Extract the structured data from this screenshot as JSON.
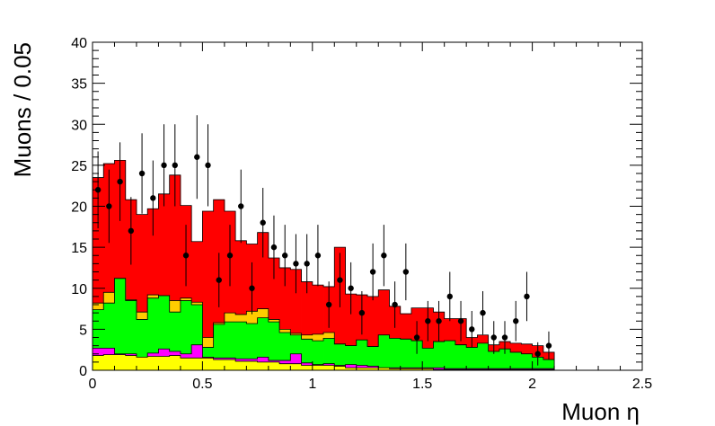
{
  "chart_data": {
    "type": "histogram-stacked",
    "xlabel": "Muon η",
    "ylabel": "Muons / 0.05",
    "xlim": [
      0,
      2.5
    ],
    "ylim": [
      0,
      40
    ],
    "bin_width": 0.05,
    "x_ticks": [
      0,
      0.5,
      1,
      1.5,
      2,
      2.5
    ],
    "x_tick_labels": [
      "0",
      "0.5",
      "1",
      "1.5",
      "2",
      "2.5"
    ],
    "y_ticks": [
      0,
      5,
      10,
      15,
      20,
      25,
      30,
      35,
      40
    ],
    "y_tick_labels": [
      "0",
      "5",
      "10",
      "15",
      "20",
      "25",
      "30",
      "35",
      "40"
    ],
    "grid": false,
    "legend": "none",
    "colors": {
      "yellow": "#ffff00",
      "magenta": "#ff00ff",
      "green": "#00ff00",
      "orange": "#ffcc00",
      "red": "#ff0000",
      "data": "#000000"
    },
    "stack_order": [
      "yellow",
      "magenta",
      "green",
      "orange",
      "red"
    ],
    "stack_cumulative": {
      "yellow": [
        1.8,
        1.9,
        1.9,
        1.8,
        1.6,
        1.7,
        1.7,
        1.8,
        1.5,
        1.5,
        1.5,
        1.3,
        1.3,
        1.1,
        1.1,
        1.0,
        1.0,
        0.8,
        0.8,
        0.6,
        0.6,
        0.6,
        0.5,
        0.3,
        0.3,
        0.3,
        0.3,
        0.2,
        0.2,
        0.2,
        0.2,
        0.1,
        0.1,
        0.1,
        0.1,
        0.1,
        0.1,
        0.1,
        0.1,
        0.1,
        0.1,
        0.1
      ],
      "magenta": [
        2.7,
        2.7,
        2.0,
        2.0,
        1.6,
        2.1,
        2.6,
        2.3,
        2.0,
        3.1,
        1.6,
        1.5,
        1.5,
        1.4,
        1.4,
        1.6,
        1.2,
        1.2,
        2.0,
        0.9,
        0.7,
        0.8,
        0.6,
        0.7,
        0.6,
        0.5,
        0.3,
        0.3,
        0.3,
        0.3,
        0.3,
        0.3,
        0.2,
        0.2,
        0.2,
        0.2,
        0.2,
        0.2,
        0.2,
        0.2,
        0.2,
        0.2
      ],
      "green": [
        7.4,
        8.2,
        11.2,
        8.5,
        6.2,
        8.8,
        9.1,
        7.1,
        8.5,
        8.0,
        2.8,
        5.6,
        5.9,
        5.9,
        5.7,
        6.4,
        5.9,
        4.6,
        4.3,
        3.8,
        3.6,
        3.9,
        3.2,
        3.0,
        3.7,
        2.9,
        4.3,
        3.9,
        3.8,
        3.6,
        2.7,
        3.5,
        3.6,
        3.1,
        2.8,
        3.3,
        2.3,
        2.6,
        2.2,
        2.0,
        1.6,
        1.3
      ],
      "orange": [
        8.2,
        9.5,
        11.2,
        8.6,
        7.1,
        9.2,
        9.1,
        8.5,
        8.8,
        8.3,
        4.0,
        5.8,
        7.0,
        6.8,
        7.2,
        7.5,
        6.2,
        5.0,
        4.5,
        4.3,
        4.4,
        4.6,
        3.2,
        3.0,
        3.7,
        2.9,
        4.3,
        3.9,
        3.8,
        3.6,
        2.7,
        3.5,
        3.6,
        3.1,
        2.8,
        3.3,
        2.3,
        2.6,
        2.2,
        2.0,
        1.6,
        1.3
      ],
      "red": [
        23.5,
        25.2,
        25.6,
        20.8,
        19.0,
        19.7,
        21.5,
        23.8,
        20.1,
        15.7,
        19.4,
        20.8,
        19.4,
        15.8,
        15.4,
        16.8,
        13.7,
        12.5,
        12.3,
        10.8,
        10.4,
        10.2,
        15.0,
        9.3,
        9.2,
        9.0,
        9.8,
        7.8,
        6.9,
        7.6,
        7.6,
        7.1,
        6.3,
        6.3,
        4.0,
        4.3,
        3.1,
        3.5,
        3.3,
        3.2,
        3.0,
        2.2
      ]
    },
    "data_points": {
      "x": [
        0.025,
        0.075,
        0.125,
        0.175,
        0.225,
        0.275,
        0.325,
        0.375,
        0.425,
        0.475,
        0.525,
        0.575,
        0.625,
        0.675,
        0.725,
        0.775,
        0.825,
        0.875,
        0.925,
        0.975,
        1.025,
        1.075,
        1.125,
        1.175,
        1.225,
        1.275,
        1.325,
        1.375,
        1.425,
        1.475,
        1.525,
        1.575,
        1.625,
        1.675,
        1.725,
        1.775,
        1.825,
        1.875,
        1.925,
        1.975,
        2.025,
        2.075
      ],
      "y": [
        22,
        20,
        23,
        17,
        24,
        21,
        25,
        25,
        14,
        26,
        25,
        11,
        14,
        20,
        10,
        18,
        15,
        14,
        13,
        13,
        14,
        8,
        11,
        10,
        7,
        12,
        14,
        8,
        12,
        4,
        6,
        6,
        9,
        6,
        5,
        7,
        4,
        4,
        6,
        9,
        2,
        3
      ]
    }
  }
}
